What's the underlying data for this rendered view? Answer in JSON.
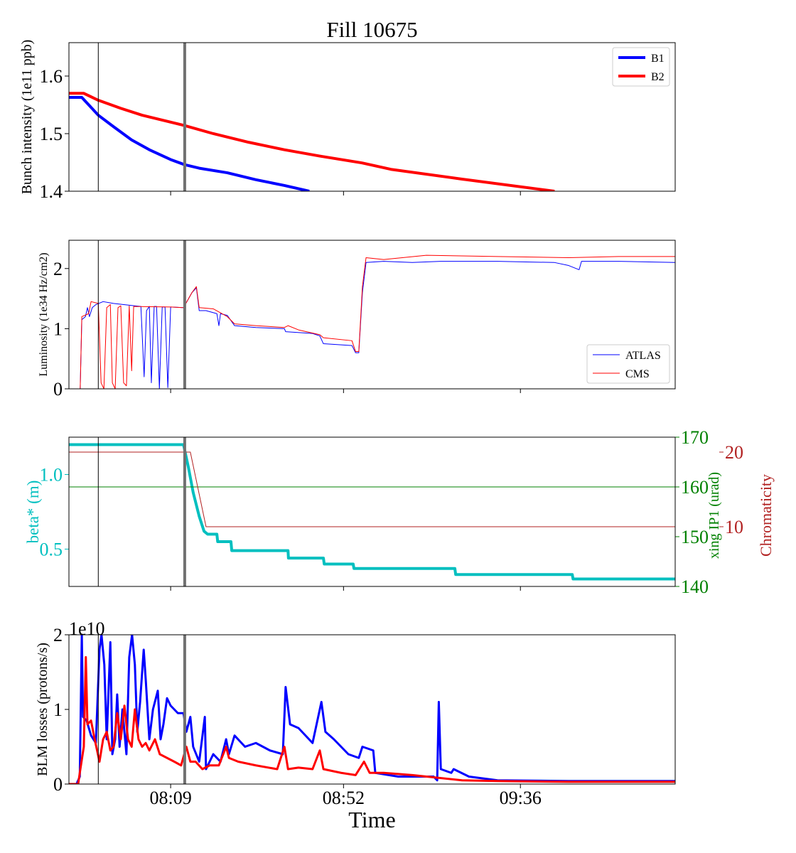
{
  "chart_data": [
    {
      "type": "line",
      "title": "Fill 10675",
      "ylabel": "Bunch intensity (1e11 ppb)",
      "xlim": [
        463.7,
        614.5
      ],
      "xticks": [
        489,
        532,
        576
      ],
      "ylim": [
        1.4,
        1.658
      ],
      "yticks": [
        1.4,
        1.5,
        1.6
      ],
      "vlines": [
        {
          "x": 471.0,
          "color": "#000000",
          "linewidth": 1
        },
        {
          "x": 492.5,
          "color": "#707070",
          "linewidth": 4
        }
      ],
      "legend": "upper right",
      "series": [
        {
          "name": "B1",
          "color": "#0000ff",
          "linewidth": 4,
          "x": [
            463.7,
            466.9,
            471.0,
            474.8,
            479.3,
            483.7,
            489.0,
            492.5,
            496.1,
            503.1,
            510.2,
            517.3,
            523.5
          ],
          "values": [
            1.563,
            1.563,
            1.532,
            1.512,
            1.489,
            1.472,
            1.455,
            1.446,
            1.44,
            1.432,
            1.42,
            1.41,
            1.4
          ]
        },
        {
          "name": "B2",
          "color": "#ff0000",
          "linewidth": 4,
          "x": [
            463.7,
            467.4,
            471.0,
            476.6,
            481.9,
            489.0,
            492.5,
            499.6,
            508.4,
            517.3,
            526.1,
            536.7,
            543.8,
            561.5,
            584.5
          ],
          "values": [
            1.57,
            1.57,
            1.558,
            1.544,
            1.532,
            1.52,
            1.514,
            1.5,
            1.485,
            1.472,
            1.461,
            1.449,
            1.438,
            1.421,
            1.4
          ]
        }
      ]
    },
    {
      "type": "line",
      "ylabel": "Luminosity (1e34 Hz/cm2)",
      "xlim": [
        463.7,
        614.5
      ],
      "xticks": [
        489,
        532,
        576
      ],
      "ylim": [
        0,
        2.47
      ],
      "yticks": [
        0,
        1,
        2
      ],
      "vlines": [
        {
          "x": 471.0,
          "color": "#000000",
          "linewidth": 1
        },
        {
          "x": 492.5,
          "color": "#707070",
          "linewidth": 4
        }
      ],
      "legend": "lower right",
      "series": [
        {
          "name": "ATLAS",
          "color": "#0000ff",
          "linewidth": 1,
          "x": [
            463.7,
            466.5,
            466.9,
            467.8,
            468.3,
            468.8,
            469.5,
            470.4,
            472.2,
            474.8,
            480.1,
            481.6,
            482.4,
            483.0,
            483.7,
            484.2,
            484.9,
            485.5,
            486.2,
            486.9,
            487.6,
            488.3,
            489.0,
            492.2,
            494.3,
            495.4,
            496.1,
            497.8,
            500.5,
            501.0,
            501.4,
            503.1,
            504.9,
            510.2,
            517.3,
            517.6,
            524.3,
            526.1,
            527.0,
            534.1,
            535.0,
            535.8,
            536.7,
            537.6,
            542.0,
            549.1,
            556.2,
            570.3,
            584.5,
            588.0,
            590.6,
            591.2,
            600.4,
            614.5
          ],
          "values": [
            0,
            0,
            1.15,
            1.2,
            1.35,
            1.2,
            1.35,
            1.4,
            1.45,
            1.42,
            1.38,
            1.37,
            0.2,
            1.3,
            1.37,
            0.1,
            1.37,
            1.37,
            0,
            1.36,
            1.36,
            0.02,
            1.36,
            1.35,
            1.6,
            1.68,
            1.3,
            1.3,
            1.25,
            1.05,
            1.25,
            1.22,
            1.05,
            1.02,
            1.0,
            0.95,
            0.92,
            0.88,
            0.75,
            0.72,
            0.6,
            0.6,
            1.6,
            2.1,
            2.12,
            2.1,
            2.12,
            2.12,
            2.1,
            2.05,
            1.98,
            2.12,
            2.12,
            2.1
          ]
        },
        {
          "name": "CMS",
          "color": "#ff0000",
          "linewidth": 1,
          "x": [
            463.7,
            466.5,
            466.9,
            468.6,
            469.2,
            471.0,
            471.7,
            472.4,
            473.1,
            474.0,
            474.5,
            475.2,
            475.9,
            476.6,
            477.3,
            478.0,
            478.7,
            479.3,
            479.8,
            489.0,
            492.2,
            494.3,
            495.4,
            496.1,
            499.6,
            503.1,
            504.9,
            510.2,
            517.3,
            518.2,
            520.8,
            526.1,
            527.0,
            534.1,
            535.0,
            535.8,
            536.7,
            537.6,
            542.0,
            552.6,
            570.3,
            588.0,
            600.4,
            614.5
          ],
          "values": [
            0,
            0,
            1.2,
            1.25,
            1.45,
            1.42,
            0.1,
            0,
            1.35,
            1.4,
            0.1,
            0,
            1.35,
            1.38,
            0.1,
            0.05,
            1.38,
            0.3,
            1.37,
            1.36,
            1.35,
            1.6,
            1.7,
            1.35,
            1.33,
            1.2,
            1.08,
            1.05,
            1.02,
            1.05,
            0.98,
            0.9,
            0.85,
            0.8,
            0.62,
            0.62,
            1.7,
            2.18,
            2.15,
            2.22,
            2.2,
            2.18,
            2.2,
            2.2
          ]
        }
      ]
    },
    {
      "type": "line",
      "ylabel": "beta* (m)",
      "y2label": "xing IP1 (urad)",
      "y3label": "Chromaticity",
      "ycolor": "#00bfbf",
      "y2color": "#008000",
      "y3color": "#b22222",
      "xlim": [
        463.7,
        614.5
      ],
      "xticks": [
        489,
        532,
        576
      ],
      "ylim": [
        0.25,
        1.25
      ],
      "yticks": [
        0.5,
        {
          "value": 1,
          "label": "1.0"
        }
      ],
      "y2lim": [
        140,
        170
      ],
      "y2ticks": [
        140,
        150,
        160,
        170
      ],
      "y3lim": [
        2,
        22
      ],
      "y3ticks": [
        10,
        20
      ],
      "vlines": [
        {
          "x": 471.0,
          "color": "#000000",
          "linewidth": 1
        },
        {
          "x": 492.5,
          "color": "#707070",
          "linewidth": 4
        }
      ],
      "series": [
        {
          "name": "beta*",
          "color": "#00bfbf",
          "linewidth": 4,
          "axis": "y",
          "x": [
            463.7,
            492.2,
            493.4,
            494.6,
            496.1,
            497.3,
            498.2,
            500.5,
            500.7,
            504.0,
            504.2,
            518.2,
            518.3,
            527.0,
            527.2,
            534.4,
            534.6,
            559.7,
            559.9,
            588.9,
            589.1,
            614.5
          ],
          "values": [
            1.2,
            1.2,
            1.05,
            0.88,
            0.72,
            0.62,
            0.6,
            0.6,
            0.55,
            0.55,
            0.49,
            0.49,
            0.44,
            0.44,
            0.4,
            0.4,
            0.37,
            0.37,
            0.33,
            0.33,
            0.3,
            0.3
          ]
        },
        {
          "name": "xing IP1",
          "color": "#008000",
          "linewidth": 1,
          "axis": "y2",
          "x": [
            463.7,
            614.5
          ],
          "values": [
            160,
            160
          ]
        },
        {
          "name": "Chromaticity",
          "color": "#b22222",
          "linewidth": 1,
          "axis": "y3",
          "x": [
            463.7,
            492.5,
            492.5,
            492.6,
            493.9,
            497.8,
            614.5
          ],
          "values": [
            20,
            20,
            10,
            20,
            20,
            10,
            10
          ]
        }
      ]
    },
    {
      "type": "line",
      "ylabel": "BLM losses (protons/s)",
      "xlabel": "Time",
      "y_offset_label": "1e10",
      "xlim": [
        463.7,
        614.5
      ],
      "xticks": [
        {
          "value": 489,
          "label": "08:09"
        },
        {
          "value": 532,
          "label": "08:52"
        },
        {
          "value": 576,
          "label": "09:36"
        }
      ],
      "ylim": [
        0,
        2
      ],
      "yticks": [
        0,
        1,
        2
      ],
      "vlines": [
        {
          "x": 471.0,
          "color": "#000000",
          "linewidth": 1
        },
        {
          "x": 492.5,
          "color": "#707070",
          "linewidth": 4
        }
      ],
      "series": [
        {
          "name": "B1",
          "color": "#0000ff",
          "linewidth": 3,
          "x": [
            463.7,
            465.6,
            466.4,
            466.9,
            467.2,
            468.1,
            469.2,
            470.4,
            471.3,
            471.8,
            472.5,
            473.1,
            474.0,
            474.5,
            475.2,
            475.7,
            476.3,
            477.0,
            478.0,
            478.7,
            479.4,
            480.1,
            480.7,
            481.4,
            482.3,
            482.8,
            483.7,
            484.6,
            485.8,
            486.5,
            487.2,
            488.1,
            489.0,
            490.8,
            492.2,
            492.9,
            493.9,
            494.6,
            496.1,
            497.5,
            497.8,
            499.6,
            501.4,
            502.8,
            503.5,
            504.9,
            507.5,
            510.2,
            513.7,
            516.9,
            517.6,
            518.7,
            520.8,
            524.3,
            526.5,
            527.5,
            529.6,
            533.2,
            535.8,
            536.7,
            539.4,
            539.9,
            545.6,
            554.4,
            555.3,
            555.7,
            556.2,
            558.8,
            559.4,
            563.2,
            570.3,
            588.0,
            614.5
          ],
          "values": [
            0,
            0,
            0.1,
            2.0,
            0.9,
            0.85,
            0.65,
            0.55,
            1.8,
            2.0,
            1.6,
            0.6,
            1.9,
            0.4,
            0.6,
            1.2,
            0.5,
            1.0,
            0.4,
            1.7,
            2.0,
            1.6,
            0.7,
            1.1,
            1.8,
            1.4,
            0.6,
            1.0,
            1.25,
            0.6,
            0.8,
            1.15,
            1.05,
            0.95,
            0.95,
            0.7,
            0.9,
            0.5,
            0.3,
            0.9,
            0.2,
            0.4,
            0.3,
            0.6,
            0.4,
            0.65,
            0.5,
            0.55,
            0.45,
            0.4,
            1.3,
            0.8,
            0.75,
            0.55,
            1.1,
            0.7,
            0.6,
            0.4,
            0.35,
            0.5,
            0.45,
            0.15,
            0.1,
            0.1,
            0.05,
            1.1,
            0.2,
            0.15,
            0.2,
            0.1,
            0.05,
            0.04,
            0.04
          ]
        },
        {
          "name": "B2",
          "color": "#ff0000",
          "linewidth": 3,
          "x": [
            463.7,
            466.0,
            466.4,
            467.4,
            467.9,
            468.3,
            469.2,
            470.1,
            471.3,
            472.2,
            473.1,
            474.0,
            474.8,
            475.7,
            476.6,
            477.5,
            478.4,
            479.3,
            480.1,
            481.0,
            481.9,
            482.8,
            483.7,
            485.1,
            486.3,
            488.1,
            489.9,
            491.6,
            492.9,
            493.9,
            495.2,
            496.9,
            498.7,
            501.0,
            502.8,
            503.5,
            505.8,
            510.2,
            515.5,
            517.3,
            518.2,
            520.8,
            524.3,
            526.1,
            527.0,
            531.4,
            535.0,
            537.1,
            538.5,
            542.0,
            549.1,
            561.5,
            570.3,
            588.0,
            614.5
          ],
          "values": [
            0,
            0,
            0.15,
            0.5,
            1.7,
            0.8,
            0.85,
            0.6,
            0.3,
            0.6,
            0.7,
            0.45,
            0.5,
            0.95,
            0.6,
            1.05,
            0.6,
            0.5,
            1.0,
            0.6,
            0.5,
            0.55,
            0.45,
            0.6,
            0.4,
            0.35,
            0.3,
            0.25,
            0.5,
            0.3,
            0.3,
            0.2,
            0.25,
            0.25,
            0.5,
            0.35,
            0.3,
            0.25,
            0.2,
            0.5,
            0.2,
            0.22,
            0.2,
            0.45,
            0.2,
            0.15,
            0.12,
            0.3,
            0.15,
            0.15,
            0.12,
            0.05,
            0.04,
            0.03,
            0.03
          ]
        }
      ]
    }
  ]
}
